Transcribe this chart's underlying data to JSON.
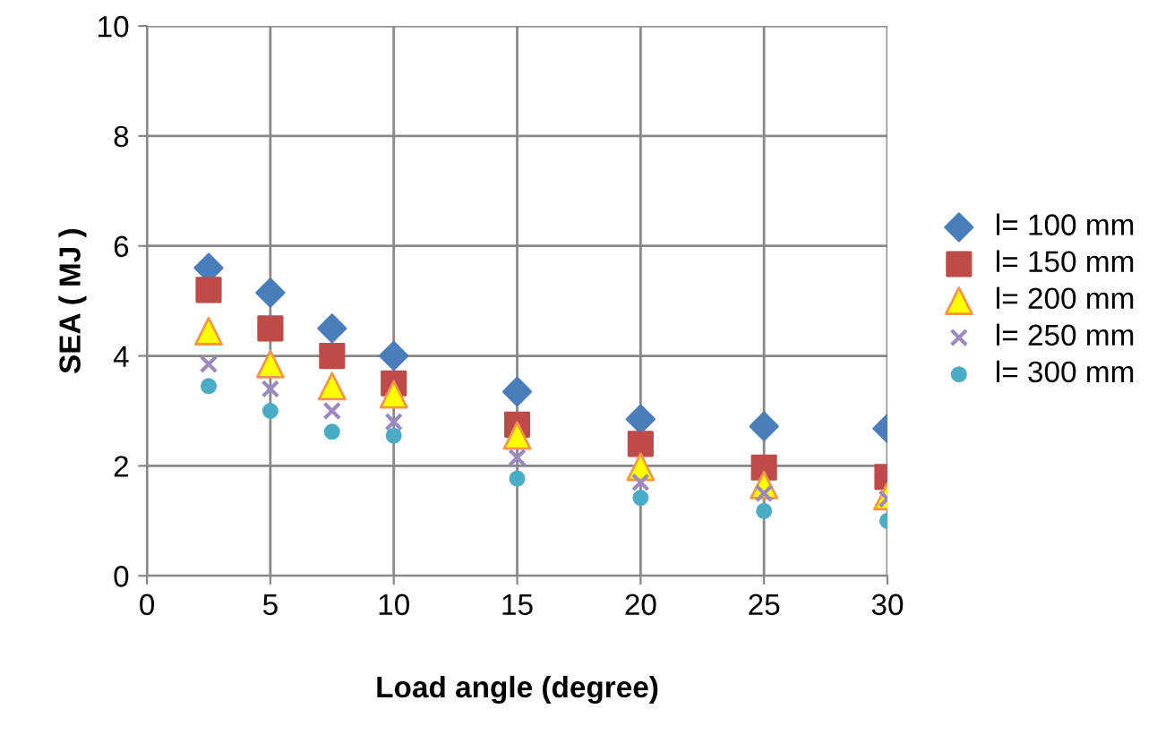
{
  "chart_data": {
    "type": "scatter",
    "xlabel": "Load angle (degree)",
    "ylabel": "SEA ( MJ )",
    "x": [
      2.5,
      5,
      7.5,
      10,
      15,
      20,
      25,
      30
    ],
    "series": [
      {
        "name": "l= 100 mm",
        "color": "#4a7ebb",
        "marker": "diamond",
        "values": [
          5.6,
          5.15,
          4.5,
          4.0,
          3.35,
          2.85,
          2.72,
          2.68
        ]
      },
      {
        "name": "l= 150 mm",
        "color": "#be4b48",
        "marker": "square",
        "values": [
          5.2,
          4.5,
          4.0,
          3.5,
          2.75,
          2.4,
          1.97,
          1.8
        ]
      },
      {
        "name": "l= 200 mm",
        "color": "#ffff00",
        "marker": "triangle",
        "values": [
          4.45,
          3.85,
          3.45,
          3.3,
          2.55,
          1.98,
          1.65,
          1.45
        ]
      },
      {
        "name": "l= 250 mm",
        "color": "#9c89c0",
        "marker": "cross",
        "values": [
          3.85,
          3.4,
          3.0,
          2.8,
          2.15,
          1.7,
          1.5,
          1.4
        ]
      },
      {
        "name": "l= 300 mm",
        "color": "#4bacc6",
        "marker": "circle",
        "values": [
          3.45,
          3.0,
          2.62,
          2.55,
          1.77,
          1.42,
          1.18,
          1.0
        ]
      }
    ],
    "xlim": [
      0,
      30
    ],
    "ylim": [
      0,
      10
    ],
    "xticks": [
      0,
      5,
      10,
      15,
      20,
      25,
      30
    ],
    "yticks": [
      0,
      2,
      4,
      6,
      8,
      10
    ],
    "grid": true,
    "legend": "right"
  }
}
